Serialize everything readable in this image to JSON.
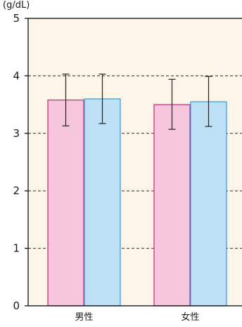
{
  "chart_data": {
    "type": "bar",
    "title": "",
    "ylabel": "(g/dL)",
    "xlabel": "",
    "categories": [
      "男性",
      "女性"
    ],
    "ylim": [
      0,
      5
    ],
    "yticks": [
      "0",
      "1",
      "2",
      "3",
      "4",
      "5"
    ],
    "grid": "dashed horizontal",
    "series": [
      {
        "values": [
          3.58,
          3.5
        ],
        "error_low": [
          3.13,
          3.07
        ],
        "error_high": [
          4.03,
          3.94
        ],
        "fill": "#f5c6dc",
        "stroke": "#d4247f"
      },
      {
        "values": [
          3.6,
          3.55
        ],
        "error_low": [
          3.17,
          3.12
        ],
        "error_high": [
          4.03,
          3.99
        ],
        "fill": "#bde0f5",
        "stroke": "#2aa0e0"
      }
    ]
  },
  "colors": {
    "plot_background": "#fdf5e8",
    "grid": "#333333",
    "axis": "#000000",
    "error_bar": "#222222"
  }
}
